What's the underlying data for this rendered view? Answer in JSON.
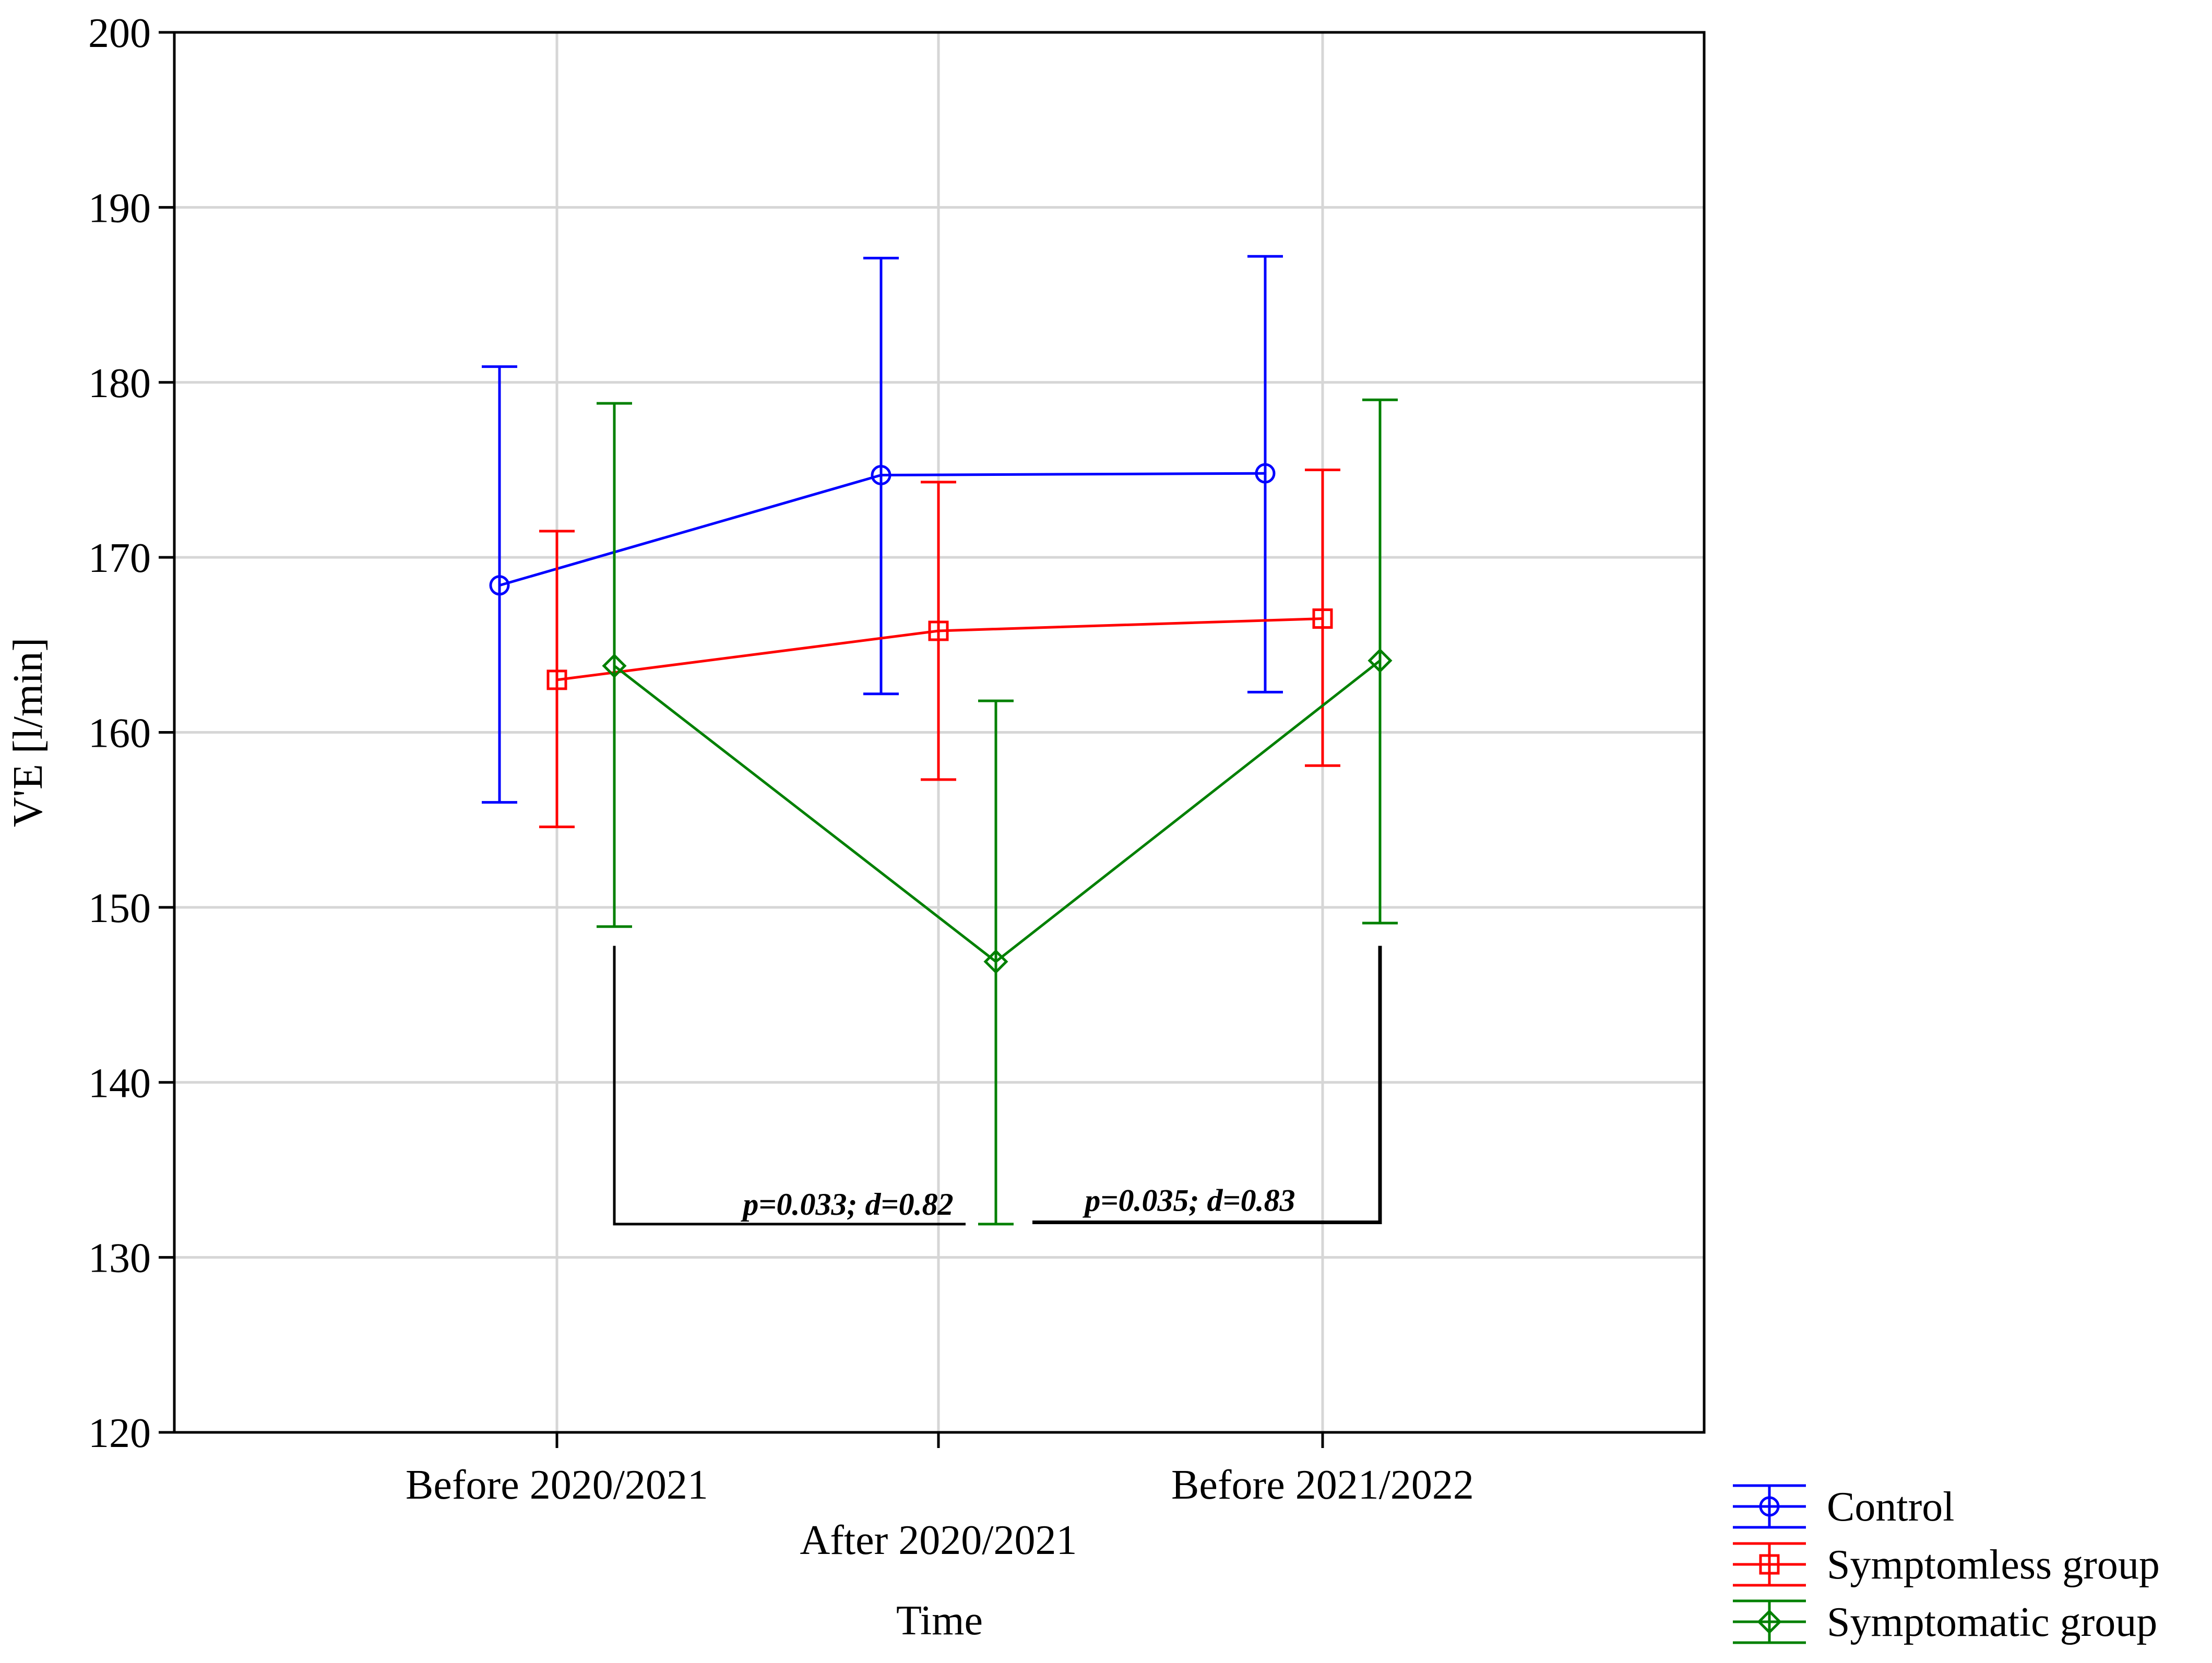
{
  "chart_data": {
    "type": "line",
    "title": "",
    "xlabel": "Time",
    "ylabel": "V'E [l/min]",
    "ylim": [
      120,
      200
    ],
    "yticks": [
      120,
      130,
      140,
      150,
      160,
      170,
      180,
      190,
      200
    ],
    "categories": [
      "Before 2020/2021",
      "After 2020/2021",
      "Before 2021/2022"
    ],
    "grid": true,
    "legend_position": "bottom-right",
    "series": [
      {
        "name": "Control",
        "color": "#0000ff",
        "marker": "circle",
        "values": [
          168.4,
          174.7,
          174.8
        ],
        "error_low": [
          156.0,
          162.2,
          162.3
        ],
        "error_high": [
          180.9,
          187.1,
          187.2
        ]
      },
      {
        "name": "Symptomless group",
        "color": "#ff0000",
        "marker": "square",
        "values": [
          163.0,
          165.8,
          166.5
        ],
        "error_low": [
          154.6,
          157.3,
          158.1
        ],
        "error_high": [
          171.5,
          174.3,
          175.0
        ]
      },
      {
        "name": "Symptomatic group",
        "color": "#008000",
        "marker": "diamond",
        "values": [
          163.8,
          146.9,
          164.1
        ],
        "error_low": [
          148.9,
          131.9,
          149.1
        ],
        "error_high": [
          178.8,
          161.8,
          179.0
        ]
      }
    ],
    "annotations": [
      {
        "text": "p=0.033; d=0.82",
        "from_category": 0,
        "to_category": 1,
        "series": "Symptomatic group",
        "bracket_top": 147.8,
        "bracket_y": 131.9
      },
      {
        "text": "p=0.035; d=0.83",
        "from_category": 1,
        "to_category": 2,
        "series": "Symptomatic group",
        "bracket_top": 147.8,
        "bracket_y": 132.0
      }
    ]
  }
}
